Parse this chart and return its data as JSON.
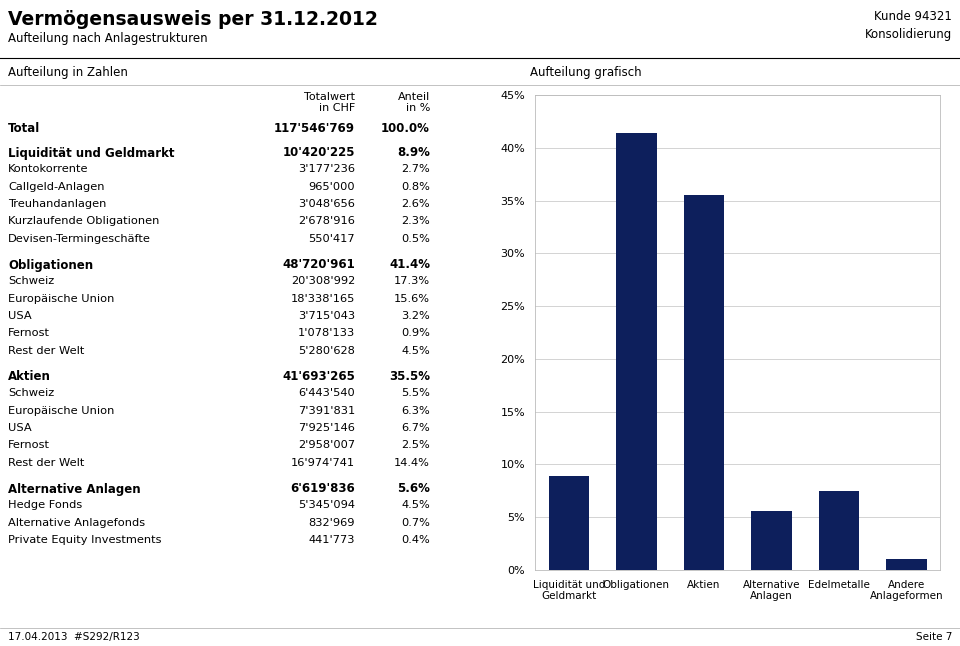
{
  "title_main": "Vermögensausweis per 31.12.2012",
  "title_sub": "Aufteilung nach Anlagestrukturen",
  "left_section_title": "Aufteilung in Zahlen",
  "right_section_title": "Aufteilung grafisch",
  "header_right": "Kunde 94321",
  "header_right2": "Konsolidierung",
  "col_header1": "Totalwert",
  "col_header1b": "in CHF",
  "col_header2": "Anteil",
  "col_header2b": "in %",
  "table_rows": [
    {
      "label": "Total",
      "value": "117'546'769",
      "pct": "100.0%",
      "bold": true,
      "indent": false,
      "spacer": false
    },
    {
      "label": "",
      "value": "",
      "pct": "",
      "bold": false,
      "indent": false,
      "spacer": true
    },
    {
      "label": "Liquidität und Geldmarkt",
      "value": "10'420'225",
      "pct": "8.9%",
      "bold": true,
      "indent": false,
      "spacer": false
    },
    {
      "label": "Kontokorrente",
      "value": "3'177'236",
      "pct": "2.7%",
      "bold": false,
      "indent": false,
      "spacer": false
    },
    {
      "label": "Callgeld-Anlagen",
      "value": "965'000",
      "pct": "0.8%",
      "bold": false,
      "indent": false,
      "spacer": false
    },
    {
      "label": "Treuhandanlagen",
      "value": "3'048'656",
      "pct": "2.6%",
      "bold": false,
      "indent": false,
      "spacer": false
    },
    {
      "label": "Kurzlaufende Obligationen",
      "value": "2'678'916",
      "pct": "2.3%",
      "bold": false,
      "indent": false,
      "spacer": false
    },
    {
      "label": "Devisen-Termingeschäfte",
      "value": "550'417",
      "pct": "0.5%",
      "bold": false,
      "indent": false,
      "spacer": false
    },
    {
      "label": "",
      "value": "",
      "pct": "",
      "bold": false,
      "indent": false,
      "spacer": true
    },
    {
      "label": "Obligationen",
      "value": "48'720'961",
      "pct": "41.4%",
      "bold": true,
      "indent": false,
      "spacer": false
    },
    {
      "label": "Schweiz",
      "value": "20'308'992",
      "pct": "17.3%",
      "bold": false,
      "indent": false,
      "spacer": false
    },
    {
      "label": "Europäische Union",
      "value": "18'338'165",
      "pct": "15.6%",
      "bold": false,
      "indent": false,
      "spacer": false
    },
    {
      "label": "USA",
      "value": "3'715'043",
      "pct": "3.2%",
      "bold": false,
      "indent": false,
      "spacer": false
    },
    {
      "label": "Fernost",
      "value": "1'078'133",
      "pct": "0.9%",
      "bold": false,
      "indent": false,
      "spacer": false
    },
    {
      "label": "Rest der Welt",
      "value": "5'280'628",
      "pct": "4.5%",
      "bold": false,
      "indent": false,
      "spacer": false
    },
    {
      "label": "",
      "value": "",
      "pct": "",
      "bold": false,
      "indent": false,
      "spacer": true
    },
    {
      "label": "Aktien",
      "value": "41'693'265",
      "pct": "35.5%",
      "bold": true,
      "indent": false,
      "spacer": false
    },
    {
      "label": "Schweiz",
      "value": "6'443'540",
      "pct": "5.5%",
      "bold": false,
      "indent": false,
      "spacer": false
    },
    {
      "label": "Europäische Union",
      "value": "7'391'831",
      "pct": "6.3%",
      "bold": false,
      "indent": false,
      "spacer": false
    },
    {
      "label": "USA",
      "value": "7'925'146",
      "pct": "6.7%",
      "bold": false,
      "indent": false,
      "spacer": false
    },
    {
      "label": "Fernost",
      "value": "2'958'007",
      "pct": "2.5%",
      "bold": false,
      "indent": false,
      "spacer": false
    },
    {
      "label": "Rest der Welt",
      "value": "16'974'741",
      "pct": "14.4%",
      "bold": false,
      "indent": false,
      "spacer": false
    },
    {
      "label": "",
      "value": "",
      "pct": "",
      "bold": false,
      "indent": false,
      "spacer": true
    },
    {
      "label": "Alternative Anlagen",
      "value": "6'619'836",
      "pct": "5.6%",
      "bold": true,
      "indent": false,
      "spacer": false
    },
    {
      "label": "Hedge Fonds",
      "value": "5'345'094",
      "pct": "4.5%",
      "bold": false,
      "indent": false,
      "spacer": false
    },
    {
      "label": "Alternative Anlagefonds",
      "value": "832'969",
      "pct": "0.7%",
      "bold": false,
      "indent": false,
      "spacer": false
    },
    {
      "label": "Private Equity Investments",
      "value": "441'773",
      "pct": "0.4%",
      "bold": false,
      "indent": false,
      "spacer": false
    }
  ],
  "bar_categories": [
    "Liquidität und\nGeldmarkt",
    "Obligationen",
    "Aktien",
    "Alternative\nAnlagen",
    "Edelmetalle",
    "Andere\nAnlageformen"
  ],
  "bar_values": [
    8.9,
    41.4,
    35.5,
    5.6,
    7.5,
    1.0
  ],
  "bar_color": "#0d1f5c",
  "ylim": [
    0,
    45
  ],
  "yticks": [
    0,
    5,
    10,
    15,
    20,
    25,
    30,
    35,
    40,
    45
  ],
  "ytick_labels": [
    "0%",
    "5%",
    "10%",
    "15%",
    "20%",
    "25%",
    "30%",
    "35%",
    "40%",
    "45%"
  ],
  "grid_color": "#cccccc",
  "bg_color": "#ffffff",
  "footer_left": "17.04.2013  #S292/R123",
  "footer_right": "Seite 7"
}
